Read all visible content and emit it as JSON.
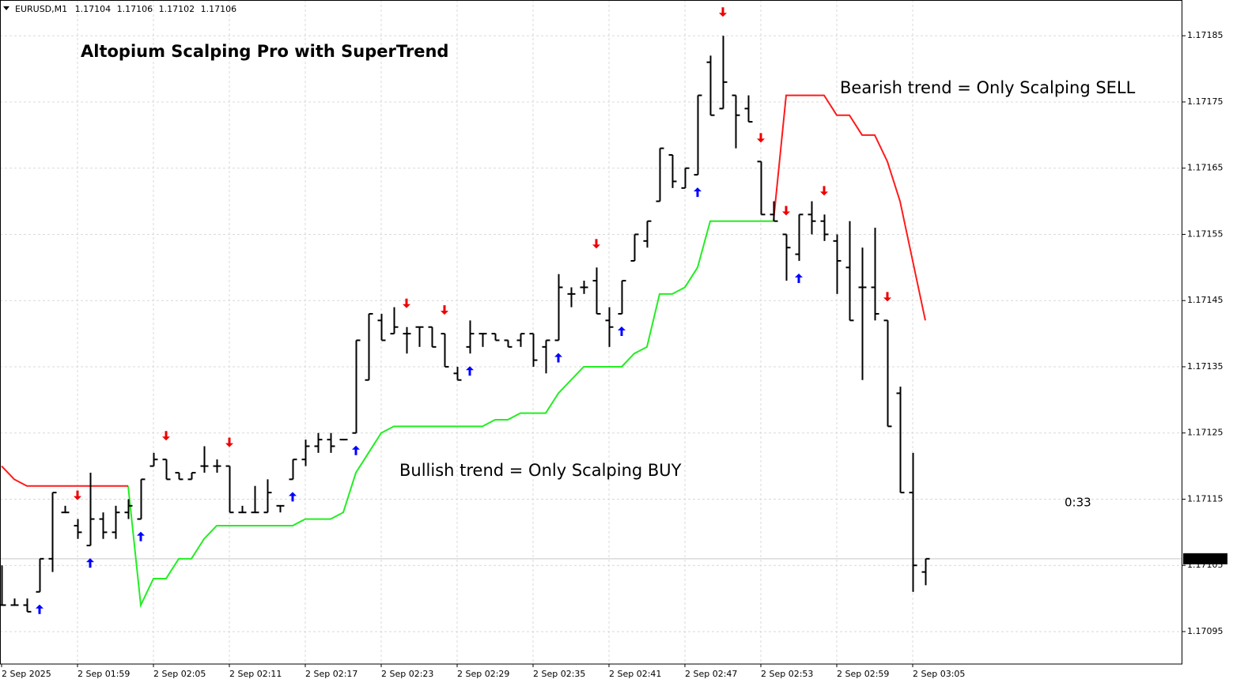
{
  "chart_data": {
    "type": "ohlc",
    "symbol": "EURUSD,M1",
    "title": "Altopium Scalping Pro with SuperTrend",
    "annotations": [
      {
        "text": "Bearish trend = Only Scalping SELL",
        "color": "#ee2b2b"
      },
      {
        "text": "Bullish trend = Only Scalping BUY",
        "color": "#1ea7e1"
      }
    ],
    "timer": "0:33",
    "timer_color": "#e0708f",
    "categories": [
      "2 Sep 2025",
      null,
      null,
      null,
      null,
      null,
      "2 Sep 01:59",
      null,
      null,
      null,
      null,
      null,
      "2 Sep 02:05",
      null,
      null,
      null,
      null,
      null,
      "2 Sep 02:11",
      null,
      null,
      null,
      null,
      null,
      "2 Sep 02:17",
      null,
      null,
      null,
      null,
      null,
      "2 Sep 02:23",
      null,
      null,
      null,
      null,
      null,
      "2 Sep 02:29",
      null,
      null,
      null,
      null,
      null,
      "2 Sep 02:35",
      null,
      null,
      null,
      null,
      null,
      "2 Sep 02:41",
      null,
      null,
      null,
      null,
      null,
      "2 Sep 02:47",
      null,
      null,
      null,
      null,
      null,
      "2 Sep 02:53",
      null,
      null,
      null,
      null,
      null,
      "2 Sep 02:59",
      null,
      null,
      null,
      null,
      null,
      "2 Sep 03:05",
      null
    ],
    "open": [
      1.17099,
      1.17099,
      1.17099,
      1.17101,
      1.17106,
      1.17113,
      1.17111,
      1.17108,
      1.17112,
      1.1711,
      1.17113,
      1.17112,
      1.1712,
      1.17121,
      1.17119,
      1.17118,
      1.1712,
      1.1712,
      1.1712,
      1.17113,
      1.17113,
      1.17113,
      1.17114,
      1.17118,
      1.17121,
      1.17123,
      1.17124,
      1.17124,
      1.17125,
      1.17133,
      1.17142,
      1.1714,
      1.1714,
      1.17141,
      1.17141,
      1.1714,
      1.17134,
      1.17138,
      1.1714,
      1.1714,
      1.17139,
      1.17139,
      1.1714,
      1.17138,
      1.17139,
      1.17146,
      1.17147,
      1.17148,
      1.17142,
      1.17143,
      1.17151,
      1.17154,
      1.1716,
      1.17167,
      1.17162,
      1.17164,
      1.17181,
      1.17174,
      1.17176,
      1.17174,
      1.17166,
      1.17158,
      1.17155,
      1.17152,
      1.17158,
      1.17157,
      1.17154,
      1.1715,
      1.17147,
      1.17147,
      1.17142,
      1.17131,
      1.17116,
      1.17104
    ],
    "high": [
      1.17105,
      1.171,
      1.171,
      1.17106,
      1.17116,
      1.17114,
      1.17112,
      1.17119,
      1.17113,
      1.17114,
      1.17115,
      1.17118,
      1.17122,
      1.17121,
      1.17119,
      1.17119,
      1.17123,
      1.17121,
      1.1712,
      1.17114,
      1.17117,
      1.17118,
      1.17114,
      1.17121,
      1.17124,
      1.17125,
      1.17125,
      1.17124,
      1.17139,
      1.17143,
      1.17143,
      1.17144,
      1.17141,
      1.17141,
      1.17141,
      1.1714,
      1.17135,
      1.17142,
      1.1714,
      1.1714,
      1.17139,
      1.1714,
      1.1714,
      1.17139,
      1.17149,
      1.17147,
      1.17148,
      1.1715,
      1.17144,
      1.17148,
      1.17155,
      1.17157,
      1.17168,
      1.17167,
      1.17165,
      1.17176,
      1.17182,
      1.17185,
      1.17176,
      1.17176,
      1.17166,
      1.1716,
      1.17155,
      1.17158,
      1.1716,
      1.17158,
      1.17155,
      1.17157,
      1.17153,
      1.17156,
      1.17142,
      1.17132,
      1.17122,
      1.17106
    ],
    "low": [
      1.17099,
      1.17099,
      1.17098,
      1.17101,
      1.17104,
      1.17113,
      1.17109,
      1.17108,
      1.17109,
      1.17109,
      1.17112,
      1.17112,
      1.1712,
      1.17118,
      1.17118,
      1.17118,
      1.17119,
      1.17119,
      1.17113,
      1.17113,
      1.17113,
      1.17113,
      1.17113,
      1.17118,
      1.1712,
      1.17122,
      1.17122,
      1.17124,
      1.17125,
      1.17133,
      1.17139,
      1.1714,
      1.17137,
      1.17138,
      1.17138,
      1.17135,
      1.17133,
      1.17137,
      1.17138,
      1.17139,
      1.17138,
      1.17138,
      1.17135,
      1.17134,
      1.17139,
      1.17144,
      1.17146,
      1.17143,
      1.17138,
      1.17143,
      1.17151,
      1.17153,
      1.1716,
      1.17162,
      1.17162,
      1.17164,
      1.17173,
      1.17174,
      1.17168,
      1.17172,
      1.17158,
      1.17157,
      1.17148,
      1.17151,
      1.17155,
      1.17154,
      1.17146,
      1.17142,
      1.17133,
      1.17142,
      1.17126,
      1.17116,
      1.17101,
      1.17102
    ],
    "close": [
      1.17099,
      1.17099,
      1.17098,
      1.17106,
      1.17116,
      1.17113,
      1.1711,
      1.17112,
      1.1711,
      1.17113,
      1.17114,
      1.17118,
      1.17121,
      1.17118,
      1.17118,
      1.17119,
      1.1712,
      1.1712,
      1.17113,
      1.17113,
      1.17113,
      1.17116,
      1.17114,
      1.17121,
      1.17123,
      1.17124,
      1.17123,
      1.17124,
      1.17139,
      1.17143,
      1.17139,
      1.17141,
      1.1714,
      1.17141,
      1.17138,
      1.17135,
      1.17133,
      1.1714,
      1.1714,
      1.17139,
      1.17138,
      1.1714,
      1.17136,
      1.17139,
      1.17147,
      1.17146,
      1.17147,
      1.17143,
      1.17141,
      1.17148,
      1.17155,
      1.17157,
      1.17168,
      1.17163,
      1.17165,
      1.17176,
      1.17173,
      1.17178,
      1.17173,
      1.17172,
      1.17158,
      1.17157,
      1.17153,
      1.17158,
      1.17157,
      1.17155,
      1.17151,
      1.17142,
      1.17147,
      1.17143,
      1.17126,
      1.17116,
      1.17105,
      1.17106
    ],
    "bar_color": "#000000",
    "series": [
      {
        "color": "#22ee22",
        "values": [
          null,
          null,
          null,
          null,
          null,
          null,
          null,
          null,
          null,
          null,
          1.17117,
          1.17099,
          1.17103,
          1.17103,
          1.17106,
          1.17106,
          1.17109,
          1.17111,
          1.17111,
          1.17111,
          1.17111,
          1.17111,
          1.17111,
          1.17111,
          1.17112,
          1.17112,
          1.17112,
          1.17113,
          1.17119,
          1.17122,
          1.17125,
          1.17126,
          1.17126,
          1.17126,
          1.17126,
          1.17126,
          1.17126,
          1.17126,
          1.17126,
          1.17127,
          1.17127,
          1.17128,
          1.17128,
          1.17128,
          1.17131,
          1.17133,
          1.17135,
          1.17135,
          1.17135,
          1.17135,
          1.17137,
          1.17138,
          1.17146,
          1.17146,
          1.17147,
          1.1715,
          1.17157,
          1.17157,
          1.17157,
          1.17157,
          1.17157,
          1.17157,
          null,
          null,
          null,
          null,
          null,
          null,
          null,
          null,
          null,
          null,
          null,
          null
        ]
      },
      {
        "color": "#ff1a1a",
        "values": [
          1.1712,
          1.17118,
          1.17117,
          1.17117,
          1.17117,
          1.17117,
          1.17117,
          1.17117,
          1.17117,
          1.17117,
          1.17117,
          null,
          null,
          null,
          null,
          null,
          null,
          null,
          null,
          null,
          null,
          null,
          null,
          null,
          null,
          null,
          null,
          null,
          null,
          null,
          null,
          null,
          null,
          null,
          null,
          null,
          null,
          null,
          null,
          null,
          null,
          null,
          null,
          null,
          null,
          null,
          null,
          null,
          null,
          null,
          null,
          null,
          null,
          null,
          null,
          null,
          null,
          null,
          null,
          null,
          null,
          1.17157,
          1.17176,
          1.17176,
          1.17176,
          1.17176,
          1.17173,
          1.17173,
          1.1717,
          1.1717,
          1.17166,
          1.1716,
          1.17151,
          1.17142
        ]
      }
    ],
    "signals_up": [
      3,
      7,
      11,
      23,
      28,
      37,
      44,
      49,
      55,
      63
    ],
    "signals_up_color": "#0000ff",
    "signals_down": [
      6,
      13,
      18,
      32,
      35,
      47,
      57,
      60,
      62,
      65,
      70
    ],
    "signals_down_color": "#ee0000",
    "ylim": [
      1.170901,
      1.171904
    ],
    "yticks": [
      1.17095,
      1.17105,
      1.17115,
      1.17125,
      1.17135,
      1.17145,
      1.17155,
      1.17165,
      1.17175,
      1.17185
    ],
    "grid": true
  }
}
